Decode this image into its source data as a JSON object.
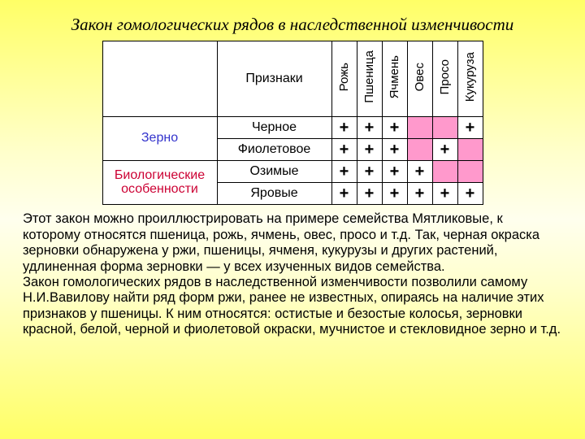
{
  "title": "Закон гомологических рядов в наследственной изменчивости",
  "table": {
    "traits_header": "Признаки",
    "crops": [
      "Рожь",
      "Пшеница",
      "Ячмень",
      "Овес",
      "Просо",
      "Кукуруза"
    ],
    "groups": [
      {
        "label": "Зерно",
        "css_class": "blue",
        "rows": 2
      },
      {
        "label": "Биологические особенности",
        "css_class": "red",
        "rows": 2
      }
    ],
    "rows": [
      {
        "trait": "Черное",
        "marks": [
          true,
          true,
          true,
          false,
          false,
          true
        ]
      },
      {
        "trait": "Фиолетовое",
        "marks": [
          true,
          true,
          true,
          false,
          true,
          false
        ]
      },
      {
        "trait": "Озимые",
        "marks": [
          true,
          true,
          true,
          true,
          false,
          false
        ]
      },
      {
        "trait": "Яровые",
        "marks": [
          true,
          true,
          true,
          true,
          true,
          true
        ]
      }
    ],
    "colors": {
      "highlight": "#ff99cc",
      "border": "#000000",
      "background": "#ffffff"
    }
  },
  "body_text": "Этот закон можно проиллюстрировать на примере семейства Мятликовые, к которому относятся пшеница, рожь, ячмень, овес, просо и т.д. Так, черная окраска зерновки обнаружена у ржи, пшеницы, ячменя, кукурузы и других растений, удлиненная форма зерновки — у всех изученных видов семейства.\nЗакон гомологических рядов в наследственной изменчивости позволили самому Н.И.Вавилову найти ряд форм ржи, ранее не известных, опираясь на наличие этих признаков у пшеницы. К ним относятся: остистые и безостые колосья, зерновки красной, белой, черной и фиолетовой окраски, мучнистое и стекловидное зерно и т.д."
}
